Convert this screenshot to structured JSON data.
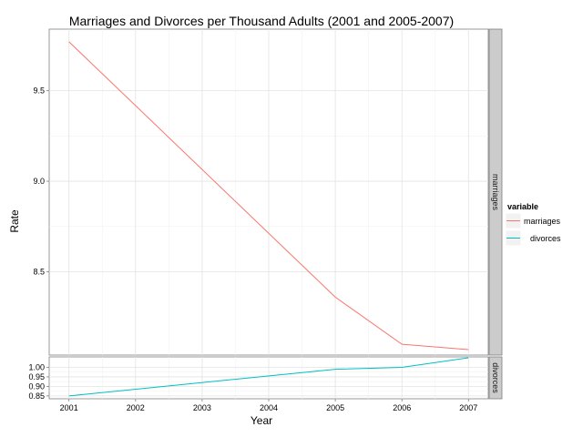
{
  "chart_data": {
    "type": "line",
    "title": "Marriages and Divorces per Thousand Adults (2001 and 2005-2007)",
    "xlabel": "Year",
    "ylabel": "Rate",
    "x": [
      2001,
      2005,
      2006,
      2007
    ],
    "x_ticks": [
      2001,
      2002,
      2003,
      2004,
      2005,
      2006,
      2007
    ],
    "x_tick_labels": [
      "2001",
      "2002",
      "2003",
      "2004",
      "2005",
      "2006",
      "2007"
    ],
    "legend_title": "variable",
    "legend_position": "right",
    "facets": [
      {
        "strip_label": "marriages",
        "ylim": [
          8.04,
          9.84
        ],
        "y_ticks": [
          8.5,
          9.0,
          9.5
        ],
        "y_tick_labels": [
          "8.5",
          "9.0",
          "9.5"
        ]
      },
      {
        "strip_label": "divorces",
        "ylim": [
          0.835,
          1.055
        ],
        "y_ticks": [
          0.85,
          0.9,
          0.95,
          1.0
        ],
        "y_tick_labels": [
          "0.85",
          "0.90",
          "0.95",
          "1.00"
        ]
      }
    ],
    "series": [
      {
        "name": "marriages",
        "color": "#F8766D",
        "values": [
          9.77,
          8.36,
          8.1,
          8.07
        ]
      },
      {
        "name": "divorces",
        "color": "#00BFC4",
        "values": [
          0.85,
          0.99,
          1.0,
          1.05
        ]
      }
    ]
  }
}
